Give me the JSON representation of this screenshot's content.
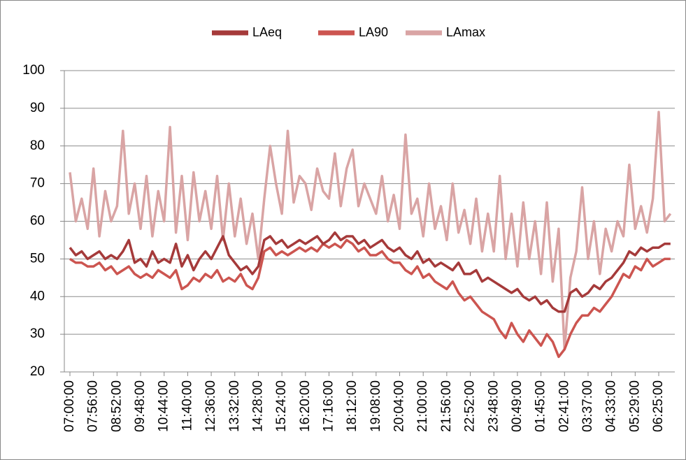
{
  "chart_data": {
    "type": "line",
    "categories": [
      "07:00:00",
      null,
      null,
      null,
      "07:56:00",
      null,
      null,
      null,
      "08:52:00",
      null,
      null,
      null,
      "09:48:00",
      null,
      null,
      null,
      "10:44:00",
      null,
      null,
      null,
      "11:40:00",
      null,
      null,
      null,
      "12:36:00",
      null,
      null,
      null,
      "13:32:00",
      null,
      null,
      null,
      "14:28:00",
      null,
      null,
      null,
      "15:24:00",
      null,
      null,
      null,
      "16:20:00",
      null,
      null,
      null,
      "17:16:00",
      null,
      null,
      null,
      "18:12:00",
      null,
      null,
      null,
      "19:08:00",
      null,
      null,
      null,
      "20:04:00",
      null,
      null,
      null,
      "21:00:00",
      null,
      null,
      null,
      "21:56:00",
      null,
      null,
      null,
      "22:52:00",
      null,
      null,
      null,
      "23:48:00",
      null,
      null,
      null,
      "00:49:00",
      null,
      null,
      null,
      "01:45:00",
      null,
      null,
      null,
      "02:41:00",
      null,
      null,
      null,
      "03:37:00",
      null,
      null,
      null,
      "04:33:00",
      null,
      null,
      null,
      "05:29:00",
      null,
      null,
      null,
      "06:25:00",
      null,
      null
    ],
    "series": [
      {
        "name": "LAeq",
        "color": "#a53a3a",
        "values": [
          53,
          51,
          52,
          50,
          51,
          52,
          50,
          51,
          50,
          52,
          55,
          49,
          50,
          48,
          52,
          49,
          50,
          49,
          54,
          48,
          51,
          47,
          50,
          52,
          50,
          53,
          56,
          51,
          49,
          47,
          48,
          46,
          48,
          55,
          56,
          54,
          55,
          53,
          54,
          55,
          54,
          55,
          56,
          54,
          55,
          57,
          55,
          56,
          56,
          54,
          55,
          53,
          54,
          55,
          53,
          52,
          53,
          51,
          50,
          52,
          49,
          50,
          48,
          49,
          48,
          47,
          49,
          46,
          46,
          47,
          44,
          45,
          44,
          43,
          42,
          41,
          42,
          40,
          39,
          40,
          38,
          39,
          37,
          36,
          36,
          41,
          42,
          40,
          41,
          43,
          42,
          44,
          45,
          47,
          49,
          52,
          51,
          53,
          52,
          53,
          53,
          54,
          54
        ]
      },
      {
        "name": "LA90",
        "color": "#cc5550",
        "values": [
          50,
          49,
          49,
          48,
          48,
          49,
          47,
          48,
          46,
          47,
          48,
          46,
          45,
          46,
          45,
          47,
          46,
          45,
          47,
          42,
          43,
          45,
          44,
          46,
          45,
          47,
          44,
          45,
          44,
          46,
          43,
          42,
          45,
          52,
          53,
          51,
          52,
          51,
          52,
          53,
          52,
          53,
          52,
          54,
          53,
          54,
          53,
          55,
          54,
          52,
          53,
          51,
          51,
          52,
          50,
          49,
          49,
          47,
          46,
          48,
          45,
          46,
          44,
          43,
          42,
          44,
          41,
          39,
          40,
          38,
          36,
          35,
          34,
          31,
          29,
          33,
          30,
          28,
          31,
          29,
          27,
          30,
          28,
          24,
          26,
          30,
          33,
          35,
          35,
          37,
          36,
          38,
          40,
          43,
          46,
          45,
          48,
          47,
          50,
          48,
          49,
          50,
          50
        ]
      },
      {
        "name": "LAmax",
        "color": "#d9a4a4",
        "values": [
          73,
          60,
          66,
          58,
          74,
          56,
          68,
          60,
          64,
          84,
          62,
          70,
          58,
          72,
          56,
          68,
          60,
          85,
          57,
          72,
          55,
          73,
          60,
          68,
          58,
          72,
          55,
          70,
          56,
          66,
          54,
          62,
          50,
          66,
          80,
          70,
          62,
          84,
          65,
          72,
          70,
          63,
          74,
          68,
          66,
          78,
          64,
          74,
          79,
          64,
          70,
          66,
          62,
          72,
          60,
          67,
          58,
          83,
          62,
          66,
          56,
          70,
          58,
          64,
          55,
          70,
          57,
          63,
          54,
          66,
          52,
          62,
          52,
          72,
          50,
          62,
          48,
          65,
          50,
          60,
          46,
          65,
          44,
          58,
          26,
          45,
          52,
          69,
          50,
          60,
          46,
          58,
          52,
          60,
          56,
          75,
          58,
          64,
          57,
          66,
          89,
          60,
          62
        ]
      }
    ],
    "ylim": [
      20,
      100
    ],
    "yticks": [
      20,
      30,
      40,
      50,
      60,
      70,
      80,
      90,
      100
    ],
    "grid": true,
    "legend": "top"
  }
}
